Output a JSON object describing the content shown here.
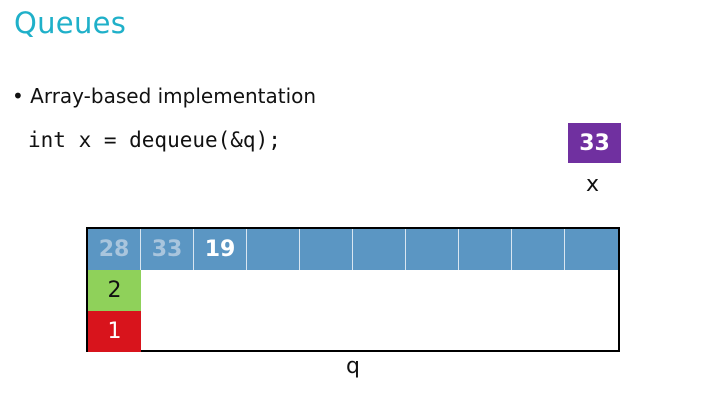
{
  "title": "Queues",
  "bullet": "• Array-based implementation",
  "code": "int x = dequeue(&q);",
  "x_value": "33",
  "x_label": "x",
  "queue": {
    "cells": [
      "28",
      "33",
      "19",
      "",
      "",
      "",
      "",
      "",
      "",
      ""
    ],
    "faded_cells": [
      0,
      1
    ],
    "front": "2",
    "back": "1",
    "label": "q"
  },
  "colors": {
    "title": "#1fb0c9",
    "x_box": "#7030a0",
    "array": "#5b96c3",
    "front": "#8fd15a",
    "back": "#d8141c"
  }
}
